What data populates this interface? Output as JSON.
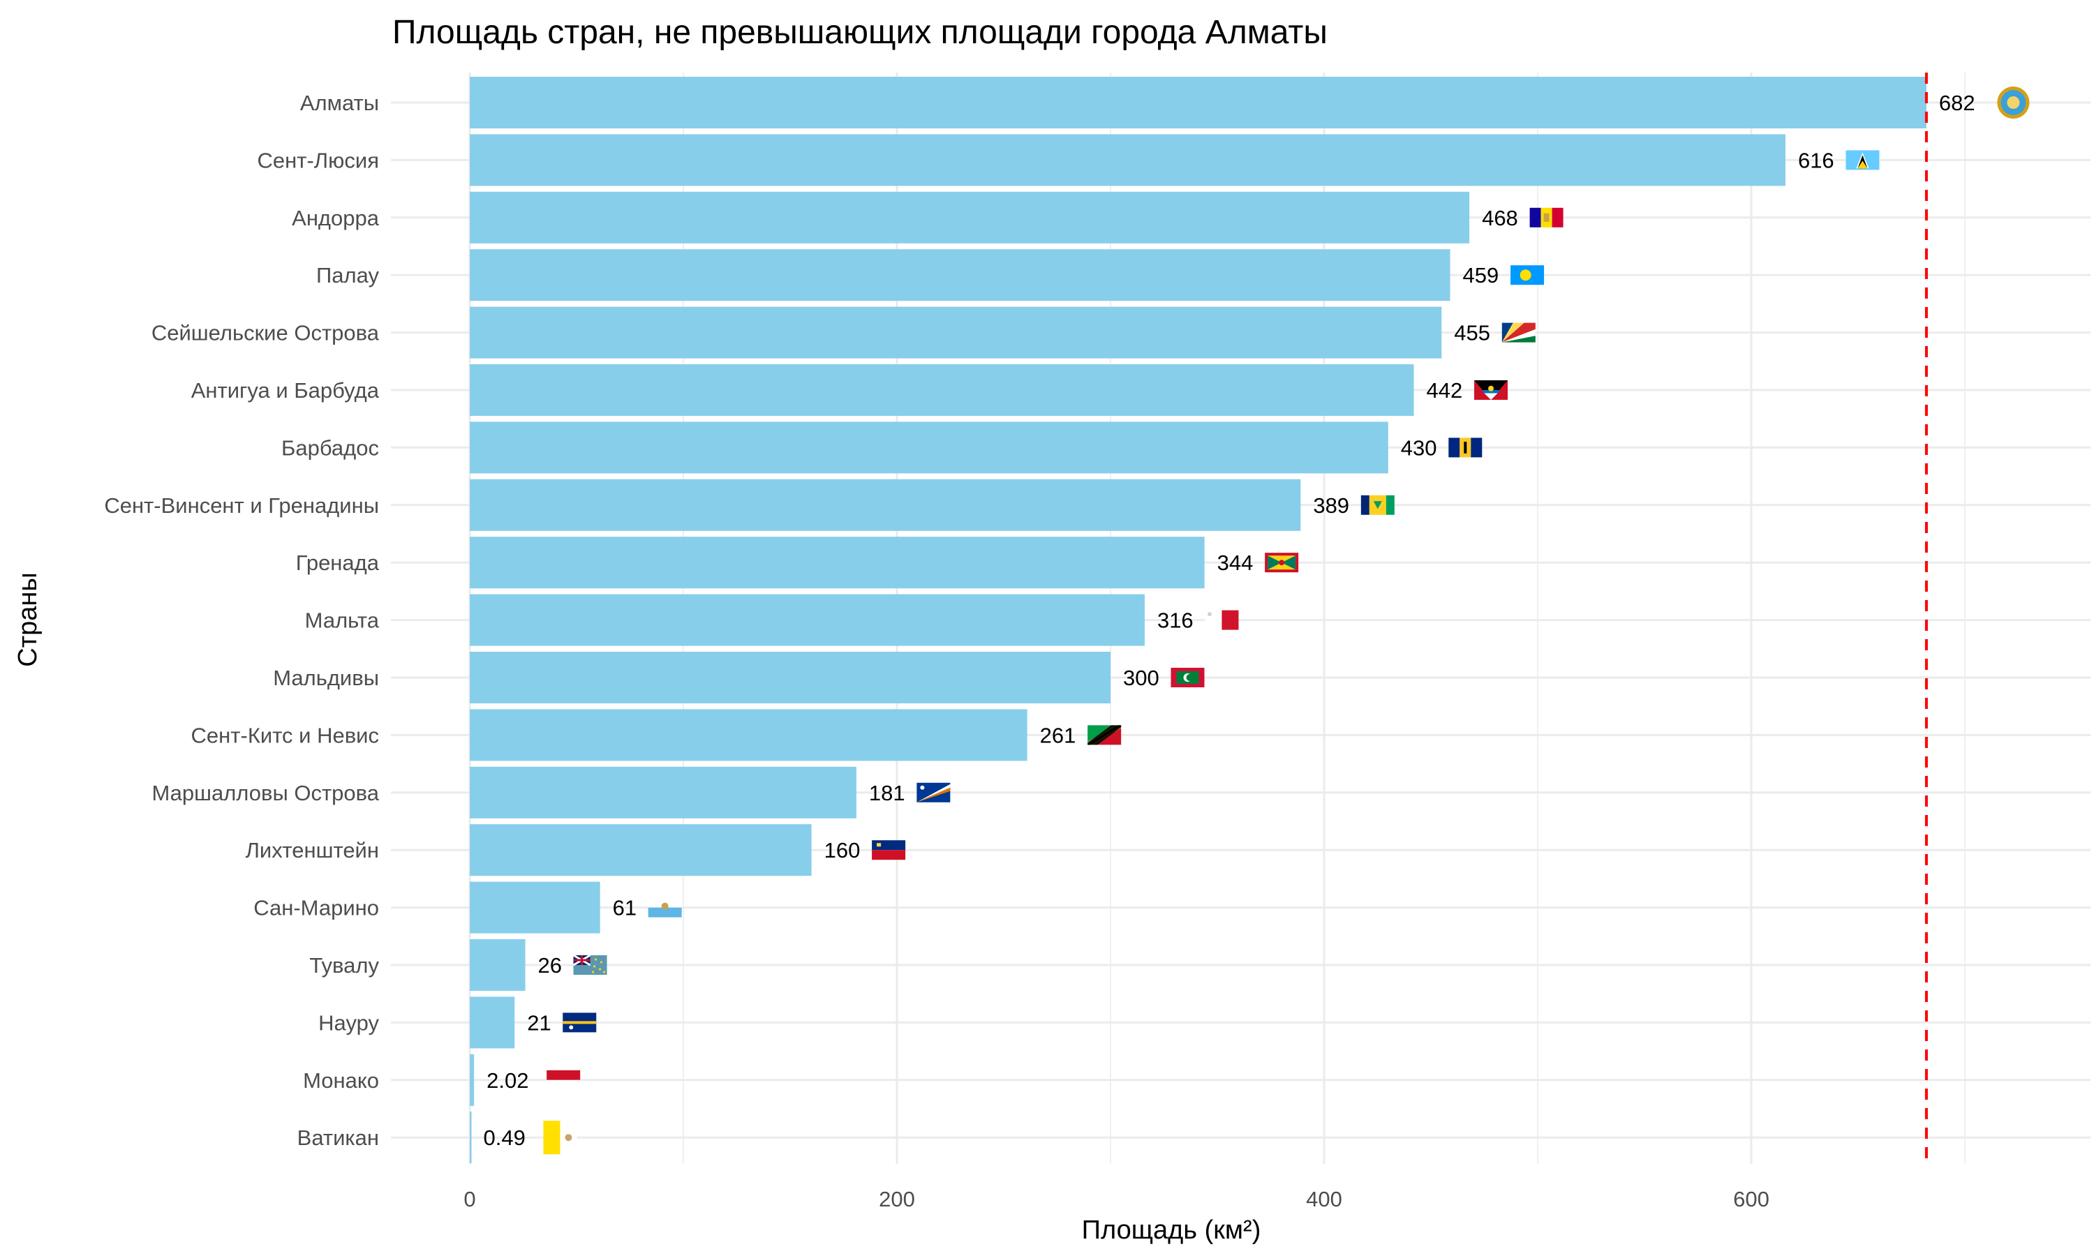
{
  "chart_data": {
    "type": "bar",
    "orientation": "horizontal",
    "title": "Площадь стран, не превышающих площади города Алматы",
    "xlabel": "Площадь (км²)",
    "ylabel": "Страны",
    "xlim": [
      0,
      720
    ],
    "x_ticks": [
      0,
      200,
      400,
      600
    ],
    "grid": true,
    "bar_color": "#87CEEB",
    "reference_line": {
      "value": 682,
      "color": "#FF0000",
      "style": "dashed"
    },
    "categories": [
      "Алматы",
      "Сент-Люсия",
      "Андорра",
      "Палау",
      "Сейшельские Острова",
      "Антигуа и Барбуда",
      "Барбадос",
      "Сент-Винсент и Гренадины",
      "Гренада",
      "Мальта",
      "Мальдивы",
      "Сент-Китс и Невис",
      "Маршалловы Острова",
      "Лихтенштейн",
      "Сан-Марино",
      "Тувалу",
      "Науру",
      "Монако",
      "Ватикан"
    ],
    "values": [
      682,
      616,
      468,
      459,
      455,
      442,
      430,
      389,
      344,
      316,
      300,
      261,
      181,
      160,
      61,
      26,
      21,
      2.02,
      0.49
    ],
    "value_labels": [
      "682",
      "616",
      "468",
      "459",
      "455",
      "442",
      "430",
      "389",
      "344",
      "316",
      "300",
      "261",
      "181",
      "160",
      "61",
      "26",
      "21",
      "2.02",
      "0.49"
    ],
    "flag_icons": [
      "almaty-emblem-icon",
      "flag-saint-lucia-icon",
      "flag-andorra-icon",
      "flag-palau-icon",
      "flag-seychelles-icon",
      "flag-antigua-barbuda-icon",
      "flag-barbados-icon",
      "flag-svg-icon",
      "flag-grenada-icon",
      "flag-malta-icon",
      "flag-maldives-icon",
      "flag-skn-icon",
      "flag-marshall-islands-icon",
      "flag-liechtenstein-icon",
      "flag-san-marino-icon",
      "flag-tuvalu-icon",
      "flag-nauru-icon",
      "flag-monaco-icon",
      "flag-vatican-icon"
    ]
  }
}
